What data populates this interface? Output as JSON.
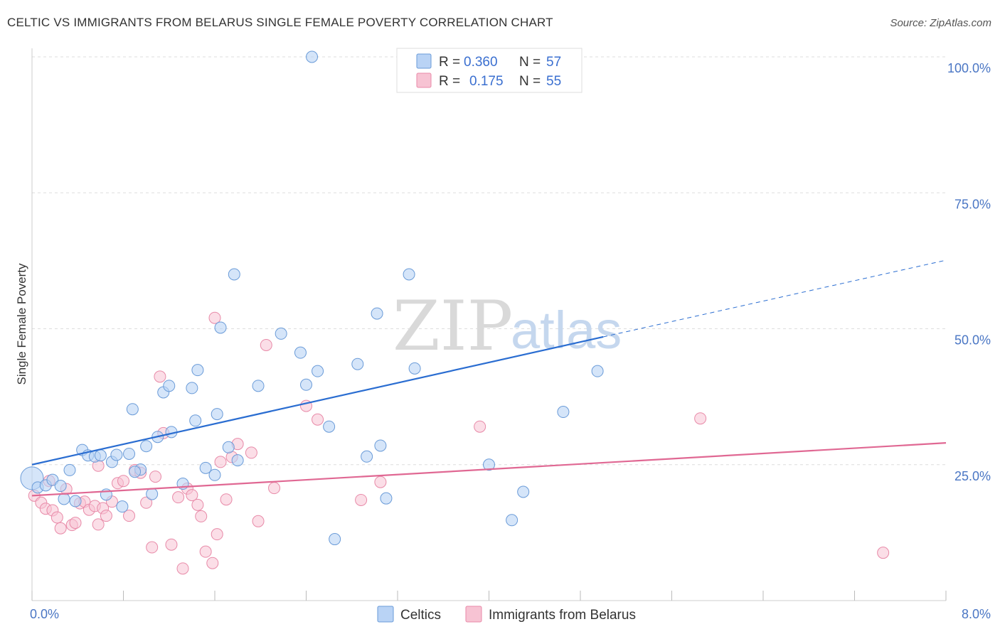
{
  "title": "CELTIC VS IMMIGRANTS FROM BELARUS SINGLE FEMALE POVERTY CORRELATION CHART",
  "source": "Source: ZipAtlas.com",
  "watermark": {
    "zip": "ZIP",
    "atlas": "atlas"
  },
  "colors": {
    "celtic_fill": "#b9d3f5",
    "celtic_stroke": "#6a9bd8",
    "celtic_line": "#2a6dd1",
    "belarus_fill": "#f7c3d3",
    "belarus_stroke": "#e88aa8",
    "belarus_line": "#e06893",
    "grid": "#dddddd",
    "tick_label": "#4a76c4"
  },
  "legend_top": {
    "rows": [
      {
        "r_label": "R =",
        "r_value": "0.360",
        "n_label": "N =",
        "n_value": "57"
      },
      {
        "r_label": "R =",
        "r_value": "0.175",
        "n_label": "N =",
        "n_value": "55"
      }
    ]
  },
  "chart_data": {
    "type": "scatter",
    "title": "CELTIC VS IMMIGRANTS FROM BELARUS SINGLE FEMALE POVERTY CORRELATION CHART",
    "xlabel": "",
    "ylabel": "Single Female Poverty",
    "xlim": [
      0,
      8
    ],
    "ylim": [
      0,
      100
    ],
    "x_tick_labels": [
      "0.0%",
      "8.0%"
    ],
    "y_ticks": [
      25,
      50,
      75,
      100
    ],
    "y_tick_labels": [
      "25.0%",
      "50.0%",
      "75.0%",
      "100.0%"
    ],
    "grid": true,
    "legend_position": "bottom",
    "series": [
      {
        "name": "Celtics",
        "R": 0.36,
        "N": 57,
        "trend": {
          "x0": 0,
          "y0": 25,
          "x1": 5.0,
          "y1": 48.5,
          "dash_x1": 8.0,
          "dash_y1": 62.6
        },
        "points": [
          [
            0.0,
            22.5
          ],
          [
            0.05,
            20.8
          ],
          [
            0.12,
            21.2
          ],
          [
            0.18,
            22.2
          ],
          [
            0.25,
            21.1
          ],
          [
            0.28,
            18.7
          ],
          [
            0.33,
            24.0
          ],
          [
            0.38,
            18.3
          ],
          [
            0.44,
            27.7
          ],
          [
            0.49,
            26.7
          ],
          [
            0.55,
            26.5
          ],
          [
            0.6,
            26.7
          ],
          [
            0.65,
            19.5
          ],
          [
            0.7,
            25.5
          ],
          [
            0.74,
            26.8
          ],
          [
            0.79,
            17.3
          ],
          [
            0.85,
            27.0
          ],
          [
            0.88,
            35.2
          ],
          [
            0.95,
            24.1
          ],
          [
            1.0,
            28.4
          ],
          [
            1.05,
            19.6
          ],
          [
            1.1,
            30.1
          ],
          [
            1.15,
            38.3
          ],
          [
            1.2,
            39.5
          ],
          [
            1.22,
            31.0
          ],
          [
            1.32,
            21.5
          ],
          [
            1.4,
            39.1
          ],
          [
            1.43,
            33.1
          ],
          [
            1.45,
            42.4
          ],
          [
            1.52,
            24.4
          ],
          [
            1.6,
            23.1
          ],
          [
            1.62,
            34.3
          ],
          [
            1.72,
            28.2
          ],
          [
            1.77,
            60.0
          ],
          [
            1.8,
            25.8
          ],
          [
            1.98,
            39.5
          ],
          [
            2.18,
            49.1
          ],
          [
            2.35,
            45.6
          ],
          [
            2.4,
            39.7
          ],
          [
            2.45,
            100.0
          ],
          [
            2.5,
            42.2
          ],
          [
            2.6,
            32.0
          ],
          [
            2.85,
            43.5
          ],
          [
            2.93,
            26.5
          ],
          [
            3.02,
            52.8
          ],
          [
            3.05,
            28.5
          ],
          [
            3.1,
            18.8
          ],
          [
            3.3,
            60.0
          ],
          [
            3.35,
            42.7
          ],
          [
            4.0,
            25.0
          ],
          [
            4.2,
            14.8
          ],
          [
            4.3,
            20.0
          ],
          [
            4.65,
            34.7
          ],
          [
            4.95,
            42.2
          ],
          [
            1.65,
            50.2
          ],
          [
            2.65,
            11.3
          ],
          [
            0.9,
            23.7
          ]
        ]
      },
      {
        "name": "Immigrants from Belarus",
        "R": 0.175,
        "N": 55,
        "trend": {
          "x0": 0,
          "y0": 19.3,
          "x1": 8.0,
          "y1": 29.0
        },
        "points": [
          [
            0.02,
            19.3
          ],
          [
            0.08,
            18.0
          ],
          [
            0.12,
            16.9
          ],
          [
            0.15,
            22.0
          ],
          [
            0.18,
            16.6
          ],
          [
            0.22,
            15.3
          ],
          [
            0.25,
            13.3
          ],
          [
            0.3,
            20.5
          ],
          [
            0.35,
            13.9
          ],
          [
            0.38,
            14.3
          ],
          [
            0.42,
            17.9
          ],
          [
            0.46,
            18.2
          ],
          [
            0.5,
            16.7
          ],
          [
            0.55,
            17.4
          ],
          [
            0.58,
            24.8
          ],
          [
            0.62,
            17.0
          ],
          [
            0.65,
            15.6
          ],
          [
            0.7,
            18.2
          ],
          [
            0.75,
            21.6
          ],
          [
            0.8,
            22.0
          ],
          [
            0.85,
            15.6
          ],
          [
            0.9,
            24.0
          ],
          [
            0.95,
            23.5
          ],
          [
            1.0,
            18.0
          ],
          [
            1.05,
            9.8
          ],
          [
            1.08,
            22.8
          ],
          [
            1.12,
            41.2
          ],
          [
            1.15,
            30.8
          ],
          [
            1.22,
            10.3
          ],
          [
            1.28,
            19.0
          ],
          [
            1.32,
            5.9
          ],
          [
            1.36,
            20.6
          ],
          [
            1.4,
            19.4
          ],
          [
            1.45,
            17.6
          ],
          [
            1.48,
            15.5
          ],
          [
            1.52,
            9.0
          ],
          [
            1.58,
            6.9
          ],
          [
            1.62,
            12.2
          ],
          [
            1.65,
            25.5
          ],
          [
            1.7,
            18.6
          ],
          [
            1.75,
            26.4
          ],
          [
            1.8,
            28.8
          ],
          [
            1.92,
            27.2
          ],
          [
            1.98,
            14.6
          ],
          [
            2.05,
            47.0
          ],
          [
            2.12,
            20.7
          ],
          [
            2.4,
            35.8
          ],
          [
            2.5,
            33.3
          ],
          [
            2.88,
            18.5
          ],
          [
            3.05,
            21.8
          ],
          [
            3.92,
            32.0
          ],
          [
            5.85,
            33.5
          ],
          [
            7.45,
            8.8
          ],
          [
            1.6,
            52.0
          ],
          [
            0.58,
            14.0
          ]
        ]
      }
    ]
  }
}
